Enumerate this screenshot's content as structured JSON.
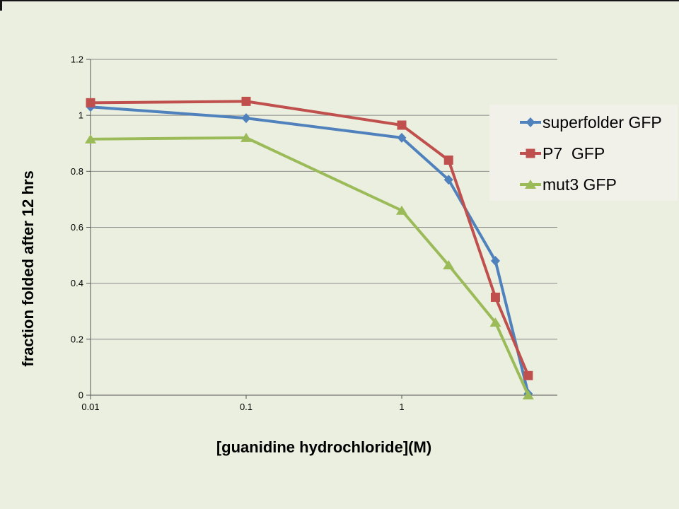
{
  "colors": {
    "background": "#EBEFDF",
    "legend_background": "#F1F1EA",
    "gridline": "#8a8a8a",
    "axis": "#555555",
    "text": "#000000",
    "edge_strip": "#161616",
    "edge_strip_light": "#FBFBF0"
  },
  "chart_data": {
    "type": "line",
    "title": "",
    "xlabel": "[guanidine hydrochloride](M)",
    "ylabel": "fraction folded after 12 hrs",
    "x_scale": "log",
    "xlim": [
      0.01,
      10
    ],
    "ylim": [
      0,
      1.2
    ],
    "grid": "horizontal",
    "legend_position": "right-overlay",
    "x": [
      0.01,
      0.1,
      1,
      2,
      4,
      6.5
    ],
    "series": [
      {
        "name": "superfolder GFP",
        "color": "#4F81BD",
        "marker": "diamond",
        "values": [
          1.03,
          0.99,
          0.92,
          0.77,
          0.48,
          0.005
        ]
      },
      {
        "name": "P7  GFP",
        "color": "#C0504D",
        "marker": "square",
        "values": [
          1.045,
          1.05,
          0.965,
          0.84,
          0.35,
          0.07
        ]
      },
      {
        "name": "mut3 GFP",
        "color": "#9BBB59",
        "marker": "triangle",
        "values": [
          0.915,
          0.92,
          0.66,
          0.465,
          0.26,
          0.0
        ]
      }
    ],
    "x_ticks": [
      {
        "value": 0.01,
        "label": "0.01"
      },
      {
        "value": 0.1,
        "label": "0.1"
      },
      {
        "value": 1,
        "label": "1"
      }
    ],
    "y_ticks": [
      {
        "value": 0,
        "label": "0"
      },
      {
        "value": 0.2,
        "label": "0.2"
      },
      {
        "value": 0.4,
        "label": "0.4"
      },
      {
        "value": 0.6,
        "label": "0.6"
      },
      {
        "value": 0.8,
        "label": "0.8"
      },
      {
        "value": 1,
        "label": "1"
      },
      {
        "value": 1.2,
        "label": "1.2"
      }
    ]
  }
}
